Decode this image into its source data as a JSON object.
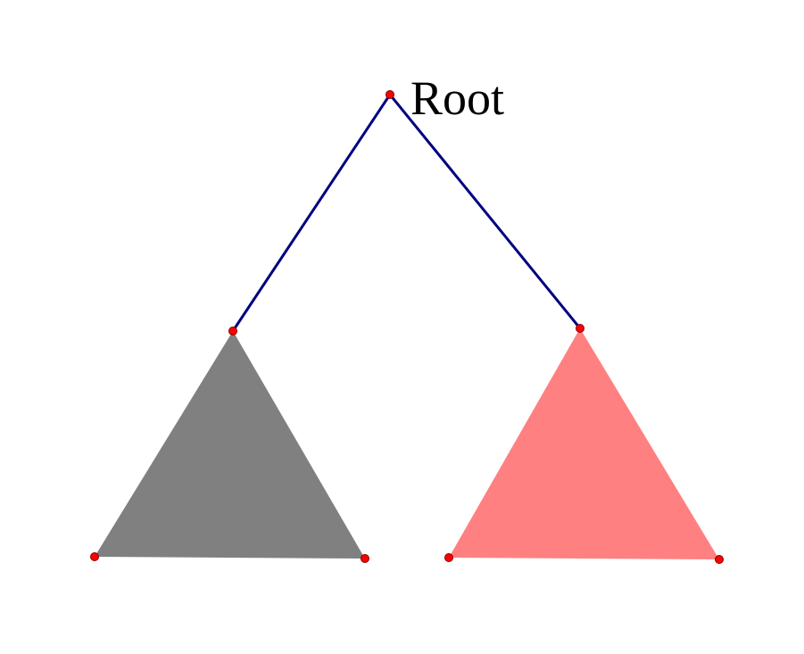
{
  "diagram": {
    "root_label": "Root",
    "colors": {
      "edge": "#000080",
      "left_subtree_fill": "#808080",
      "right_subtree_fill": "#ff8080",
      "vertex_fill": "#ff0000",
      "vertex_stroke": "#800000"
    }
  }
}
